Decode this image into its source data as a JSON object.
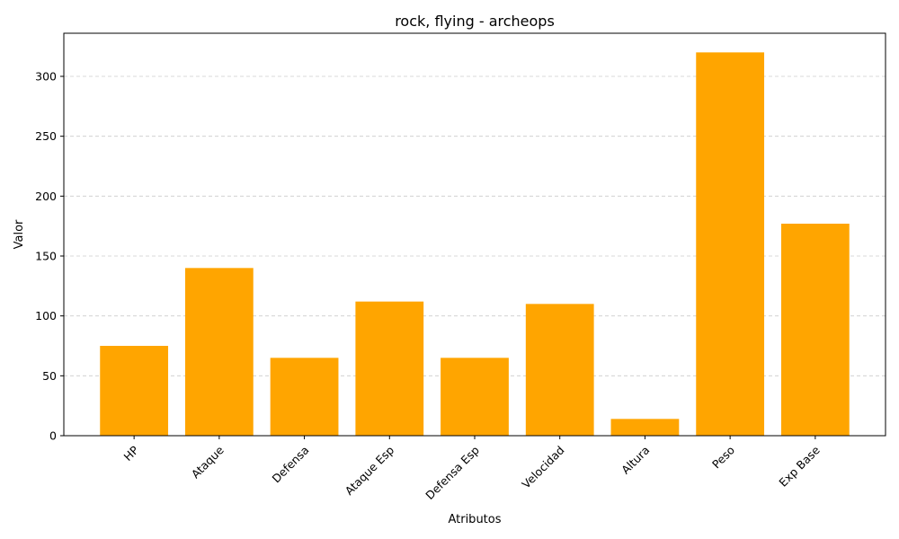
{
  "chart_data": {
    "type": "bar",
    "title": "rock, flying - archeops",
    "xlabel": "Atributos",
    "ylabel": "Valor",
    "categories": [
      "HP",
      "Ataque",
      "Defensa",
      "Ataque Esp",
      "Defensa Esp",
      "Velocidad",
      "Altura",
      "Peso",
      "Exp Base"
    ],
    "values": [
      75,
      140,
      65,
      112,
      65,
      110,
      14,
      320,
      177
    ],
    "ylim": [
      0,
      336
    ],
    "yticks": [
      0,
      50,
      100,
      150,
      200,
      250,
      300
    ],
    "grid": "y-dashed",
    "bar_color": "#FFA500",
    "grid_color": "#cccccc",
    "xtick_rotation": 45
  }
}
